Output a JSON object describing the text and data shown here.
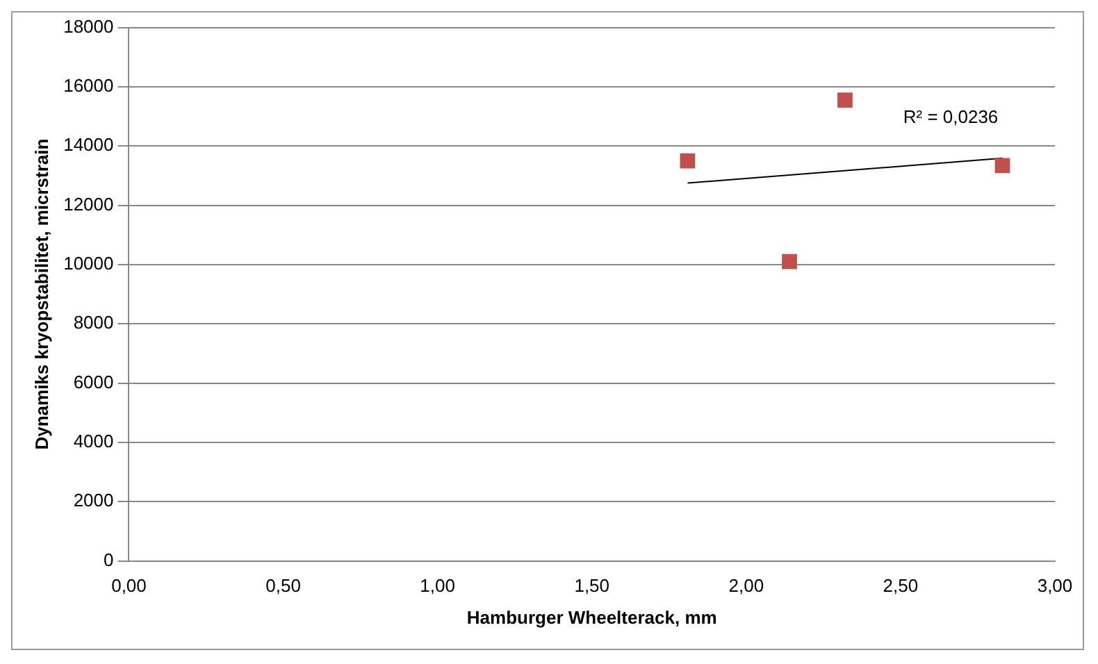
{
  "chart_data": {
    "type": "scatter",
    "xlabel": "Hamburger Wheelterack, mm",
    "ylabel": "Dynamiks kryopstabilitet, micrstrain",
    "xlim": [
      0,
      3
    ],
    "xticks": [
      {
        "value": 0,
        "label": "0,00"
      },
      {
        "value": 0.5,
        "label": "0,50"
      },
      {
        "value": 1,
        "label": "1,00"
      },
      {
        "value": 1.5,
        "label": "1,50"
      },
      {
        "value": 2,
        "label": "2,00"
      },
      {
        "value": 2.5,
        "label": "2,50"
      },
      {
        "value": 3,
        "label": "3,00"
      }
    ],
    "ylim": [
      0,
      18000
    ],
    "yticks": [
      0,
      2000,
      4000,
      6000,
      8000,
      10000,
      12000,
      14000,
      16000,
      18000
    ],
    "grid": "y",
    "series": [
      {
        "marker": "square",
        "color": "#c0504d",
        "x": [
          1.81,
          2.14,
          2.32,
          2.83
        ],
        "values": [
          13500,
          10100,
          15550,
          13340
        ]
      },
      {
        "type": "line",
        "color": "#000000",
        "x": [
          1.81,
          2.83
        ],
        "values": [
          12750,
          13590
        ]
      }
    ],
    "annotations": [
      "R² = 0,0236"
    ]
  }
}
